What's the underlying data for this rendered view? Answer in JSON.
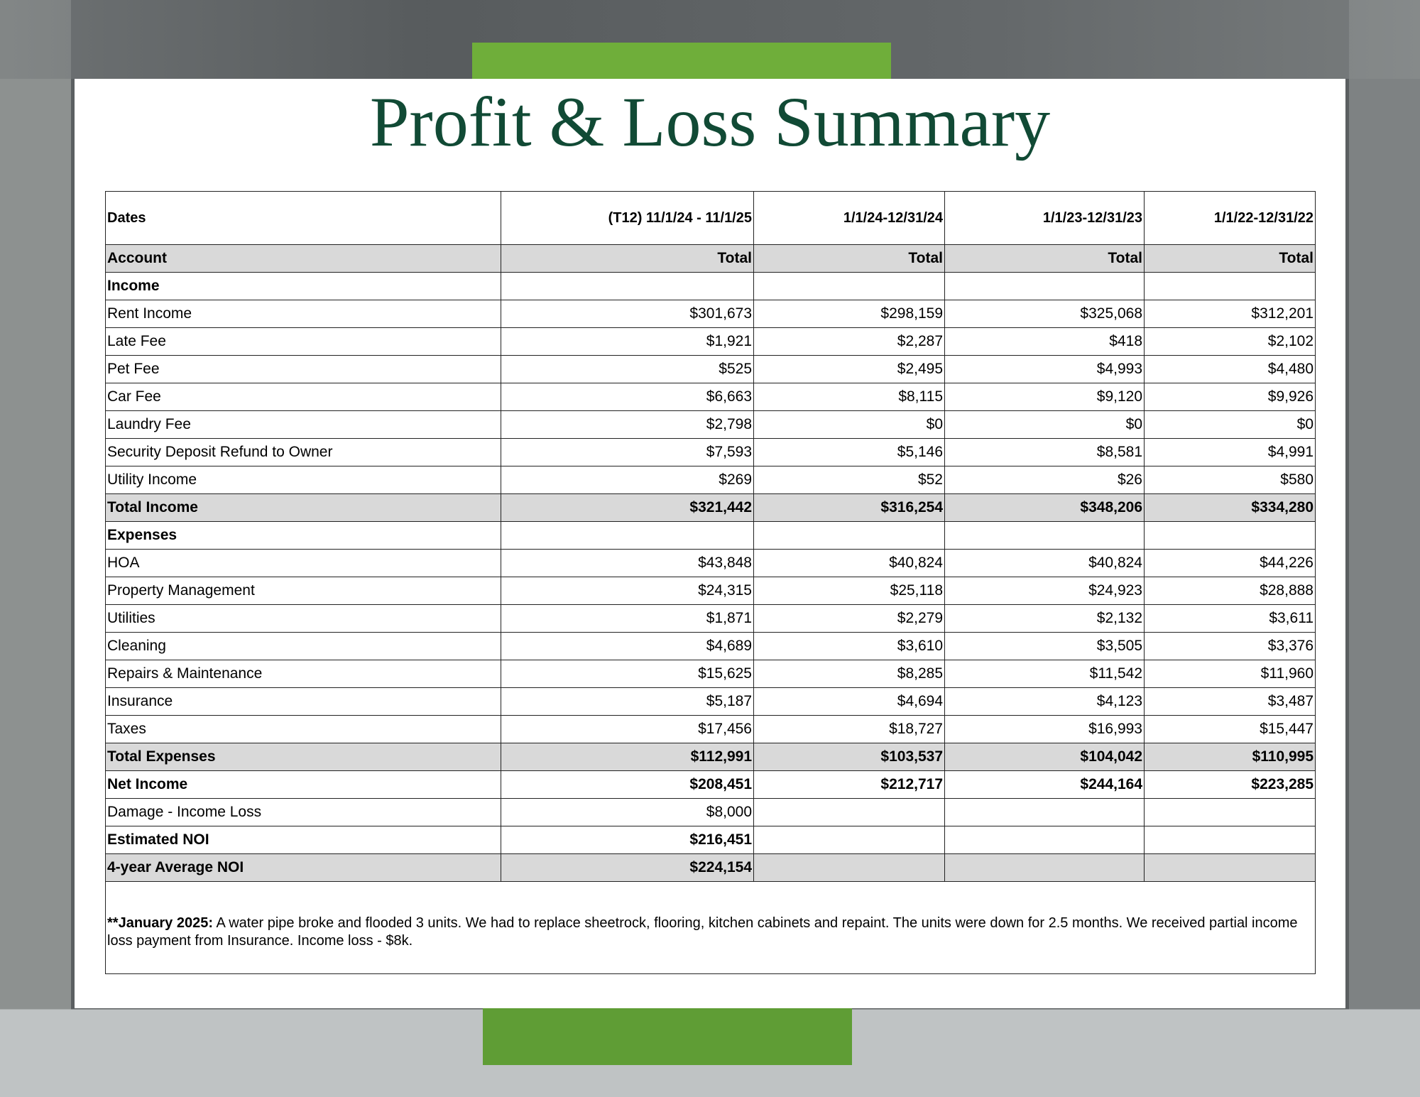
{
  "title": "Profit & Loss Summary",
  "table": {
    "header": [
      "Dates",
      "(T12)  11/1/24 - 11/1/25",
      "1/1/24-12/31/24",
      "1/1/23-12/31/23",
      "1/1/22-12/31/22"
    ],
    "rows": [
      [
        "Account",
        "Total",
        "Total",
        "Total",
        "Total"
      ],
      [
        "Income",
        null,
        null,
        null,
        null
      ],
      [
        "Rent Income",
        "$301,673",
        "$298,159",
        "$325,068",
        "$312,201"
      ],
      [
        "Late Fee",
        "$1,921",
        "$2,287",
        "$418",
        "$2,102"
      ],
      [
        "Pet Fee",
        "$525",
        "$2,495",
        "$4,993",
        "$4,480"
      ],
      [
        "Car Fee",
        "$6,663",
        "$8,115",
        "$9,120",
        "$9,926"
      ],
      [
        "Laundry Fee",
        "$2,798",
        "$0",
        "$0",
        "$0"
      ],
      [
        "Security Deposit Refund to Owner",
        "$7,593",
        "$5,146",
        "$8,581",
        "$4,991"
      ],
      [
        "Utility Income",
        "$269",
        "$52",
        "$26",
        "$580"
      ],
      [
        "Total Income",
        "$321,442",
        "$316,254",
        "$348,206",
        "$334,280"
      ],
      [
        "Expenses",
        null,
        null,
        null,
        null
      ],
      [
        "HOA",
        "$43,848",
        "$40,824",
        "$40,824",
        "$44,226"
      ],
      [
        "Property Management",
        "$24,315",
        "$25,118",
        "$24,923",
        "$28,888"
      ],
      [
        "Utilities",
        "$1,871",
        "$2,279",
        "$2,132",
        "$3,611"
      ],
      [
        "Cleaning",
        "$4,689",
        "$3,610",
        "$3,505",
        "$3,376"
      ],
      [
        "Repairs & Maintenance",
        "$15,625",
        "$8,285",
        "$11,542",
        "$11,960"
      ],
      [
        "Insurance",
        "$5,187",
        "$4,694",
        "$4,123",
        "$3,487"
      ],
      [
        "Taxes",
        "$17,456",
        "$18,727",
        "$16,993",
        "$15,447"
      ],
      [
        "Total Expenses",
        "$112,991",
        "$103,537",
        "$104,042",
        "$110,995"
      ],
      [
        "Net Income",
        "$208,451",
        "$212,717",
        "$244,164",
        "$223,285"
      ],
      [
        "Damage - Income Loss",
        "$8,000",
        null,
        null,
        null
      ],
      [
        "Estimated NOI",
        "$216,451",
        null,
        null,
        null
      ],
      [
        "4-year Average NOI",
        "$224,154",
        null,
        null,
        null
      ]
    ]
  },
  "note": {
    "lead": "**January 2025:",
    "text": " A water pipe broke and flooded 3 units. We had to replace sheetrock, flooring, kitchen cabinets and repaint. The units were down for 2.5 months. We received partial income loss payment from Insurance. Income loss - $8k."
  }
}
